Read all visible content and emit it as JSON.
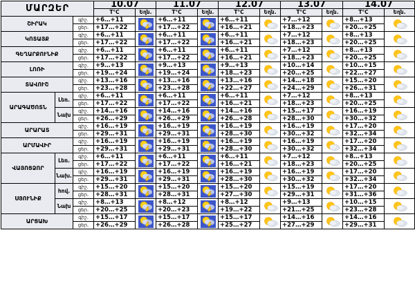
{
  "header": {
    "region_title": "ՄԱՐԶԵՐ",
    "dates": [
      "10.07",
      "11.07",
      "12.07",
      "13.07",
      "14.07"
    ],
    "temp_label": "T°C",
    "weather_label": "Եղն."
  },
  "day_labels": {
    "day": "ցեր.",
    "night": "գիշ."
  },
  "rows": [
    {
      "region": "ՇԻՐԱԿ",
      "night": [
        "+6…+11",
        "+6…+11",
        "+6…+11",
        "+7…+12",
        "+8…+13"
      ],
      "day": [
        "+17…+22",
        "+17…+22",
        "+16…+21",
        "+18…+23",
        "+20…+25"
      ],
      "icons": [
        "storm",
        "storm",
        "partly",
        "partly",
        "partly"
      ]
    },
    {
      "region": "ԿՈՏԱՅՔ",
      "night": [
        "+6…+11",
        "+6…+11",
        "+6…+11",
        "+7…+12",
        "+8…+13"
      ],
      "day": [
        "+17…+22",
        "+17…+22",
        "+16…+21",
        "+18…+23",
        "+20…+25"
      ],
      "icons": [
        "storm",
        "storm",
        "partly",
        "partly",
        "partly"
      ]
    },
    {
      "region": "ԳԵՂԱՐՔՈՒՆԻՔ",
      "night": [
        "+6…+11",
        "+6…+11",
        "+6…+11",
        "+7…+12",
        "+8…+13"
      ],
      "day": [
        "+17…+22",
        "+17…+22",
        "+16…+21",
        "+18…+23",
        "+20…+25"
      ],
      "icons": [
        "storm",
        "storm",
        "partly",
        "partly",
        "partly"
      ]
    },
    {
      "region": "ԼՈՌԻ",
      "night": [
        "+9…+13",
        "+9…+13",
        "+9…+13",
        "+10…+14",
        "+10…+15"
      ],
      "day": [
        "+19…+24",
        "+19…+24",
        "+18…+23",
        "+20…+25",
        "+22…+27"
      ],
      "icons": [
        "storm",
        "storm",
        "partly",
        "partly",
        "partly"
      ]
    },
    {
      "region": "ՏԱՎՈՒՇ",
      "night": [
        "+13…+16",
        "+13…+16",
        "+13…+16",
        "+14…+18",
        "+15…+20"
      ],
      "day": [
        "+23…+28",
        "+23…+28",
        "+22…+27",
        "+24…+29",
        "+26…+31"
      ],
      "icons": [
        "storm",
        "storm",
        "partly",
        "partly",
        "partly"
      ]
    },
    {
      "region": "ԱՐԱԳԱԾՈՏՆ",
      "sub": "Լեռ.",
      "night": [
        "+6…+11",
        "+6…+11",
        "+6…+11",
        "+7…+12",
        "+8…+13"
      ],
      "day": [
        "+17…+22",
        "+17…+22",
        "+16…+21",
        "+18…+23",
        "+20…+25"
      ],
      "icons": [
        "storm",
        "storm",
        "partly",
        "partly",
        "partly"
      ]
    },
    {
      "region": "",
      "sub": "Նախ",
      "night": [
        "+14…+16",
        "+14…+16",
        "+14…+16",
        "+15…+17",
        "+16…+19"
      ],
      "day": [
        "+26…+29",
        "+26…+29",
        "+26…+28",
        "+28…+30",
        "+30…+32"
      ],
      "icons": [
        "storm",
        "storm",
        "partly",
        "partly",
        "partly"
      ]
    },
    {
      "region": "ԱՐԱՐԱՏ",
      "night": [
        "+16…+19",
        "+16…+19",
        "+16…+19",
        "+16…+19",
        "+17…+20"
      ],
      "day": [
        "+29…+31",
        "+29…+31",
        "+28…+30",
        "+30…+32",
        "+32…+34"
      ],
      "icons": [
        "storm",
        "storm",
        "partly",
        "partly",
        "partly"
      ]
    },
    {
      "region": "ԱՐՄԱՎԻՐ",
      "night": [
        "+16…+19",
        "+16…+19",
        "+16…+19",
        "+16…+19",
        "+17…+20"
      ],
      "day": [
        "+29…+31",
        "+29…+31",
        "+28…+30",
        "+30…+32",
        "+32…+34"
      ],
      "icons": [
        "storm",
        "storm",
        "partly",
        "partly",
        "partly"
      ]
    },
    {
      "region": "ՎԱՅՈՑՁՈՐ",
      "sub": "Լեռ.",
      "night": [
        "+6…+11",
        "+6…+11",
        "+6…+11",
        "+7…+12",
        "+8…+13"
      ],
      "day": [
        "+17…+22",
        "+17…+22",
        "+16…+21",
        "+18…+23",
        "+20…+25"
      ],
      "icons": [
        "storm",
        "storm",
        "partly",
        "partly",
        "partly"
      ]
    },
    {
      "region": "",
      "sub": "Նախ.",
      "night": [
        "+16…+19",
        "+16…+19",
        "+16…+19",
        "+16…+19",
        "+17…+20"
      ],
      "day": [
        "+29…+31",
        "+29…+31",
        "+28…+30",
        "+30…+32",
        "+32…+34"
      ],
      "icons": [
        "storm",
        "storm",
        "partly",
        "partly",
        "partly"
      ]
    },
    {
      "region": "ՍՅՈՒՆԻՔ",
      "sub": "հով.",
      "night": [
        "+15…+20",
        "+15…+20",
        "+15…+20",
        "+15…+19",
        "+17…+20"
      ],
      "day": [
        "+28…+31",
        "+28…+31",
        "+27…+30",
        "+29…+31",
        "+31…+36"
      ],
      "icons": [
        "storm",
        "storm",
        "partly",
        "partly",
        "partly"
      ]
    },
    {
      "region": "",
      "sub": "Նախ",
      "night": [
        "+8…+13",
        "+8…+12",
        "+8…+12",
        "+9…+13",
        "+10…+15"
      ],
      "day": [
        "+20…+25",
        "+20…+23",
        "+19…+22",
        "+21…+25",
        "+23…+28"
      ],
      "icons": [
        "storm",
        "storm",
        "partly",
        "partly",
        "partly"
      ]
    },
    {
      "region": "ԱՐՑԱԽ",
      "night": [
        "+15…+17",
        "+15…+17",
        "+15…+17",
        "+14…+16",
        "+14…+16"
      ],
      "day": [
        "+26…+29",
        "+26…+28",
        "+25…+27",
        "+27…+29",
        "+29…+31"
      ],
      "icons": [
        "storm",
        "storm",
        "partly",
        "partly",
        "partly"
      ]
    }
  ]
}
